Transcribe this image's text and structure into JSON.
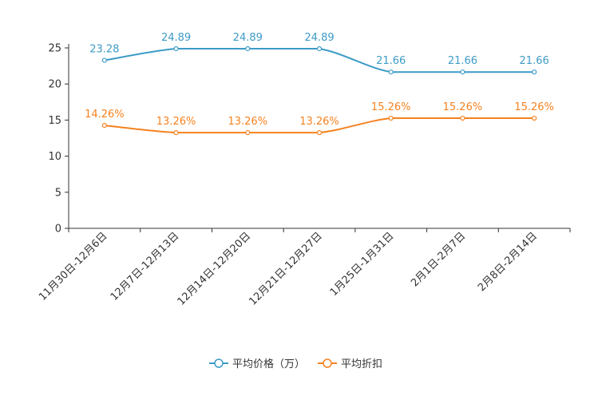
{
  "chart_data": {
    "type": "line",
    "title": "",
    "xlabel": "",
    "ylabel": "",
    "ylim": [
      0,
      25
    ],
    "yticks": [
      0,
      5,
      10,
      15,
      20,
      25
    ],
    "grid": false,
    "legend_position": "bottom-center",
    "categories": [
      "11月30日-12月6日",
      "12月7日-12月13日",
      "12月14日-12月20日",
      "12月21日-12月27日",
      "1月25日-1月31日",
      "2月1日-2月7日",
      "2月8日-2月14日"
    ],
    "series": [
      {
        "name": "平均价格（万）",
        "color": "#3d9bc6",
        "values": [
          23.28,
          24.89,
          24.89,
          24.89,
          21.66,
          21.66,
          21.66
        ],
        "labels": [
          "23.28",
          "24.89",
          "24.89",
          "24.89",
          "21.66",
          "21.66",
          "21.66"
        ]
      },
      {
        "name": "平均折扣",
        "color": "#f5821f",
        "values": [
          14.26,
          13.26,
          13.26,
          13.26,
          15.26,
          15.26,
          15.26
        ],
        "labels": [
          "14.26%",
          "13.26%",
          "13.26%",
          "13.26%",
          "15.26%",
          "15.26%",
          "15.26%"
        ]
      }
    ]
  }
}
